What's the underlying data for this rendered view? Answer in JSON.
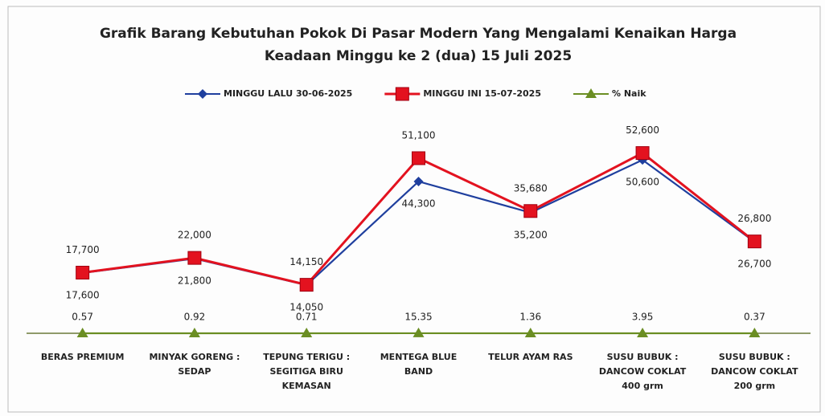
{
  "chart_data": {
    "type": "line",
    "title": "Grafik Barang Kebutuhan Pokok Di Pasar Modern Yang Mengalami Kenaikan Harga",
    "subtitle": "Keadaan Minggu ke  2 (dua) 15 Juli 2025",
    "categories": [
      "BERAS PREMIUM",
      "MINYAK GORENG :\nSEDAP",
      "TEPUNG TERIGU :\nSEGITIGA BIRU\nKEMASAN",
      "MENTEGA BLUE\nBAND",
      "TELUR AYAM RAS",
      "SUSU BUBUK :\nDANCOW COKLAT\n400 grm",
      "SUSU BUBUK :\nDANCOW COKLAT\n200 grm"
    ],
    "ylim": [
      0,
      60000
    ],
    "series": [
      {
        "name": "MINGGU LALU 30-06-2025",
        "color": "#1f3f9e",
        "values": [
          17600,
          21800,
          14050,
          44300,
          35200,
          50600,
          26700
        ],
        "value_labels": [
          "17,600",
          "21,800",
          "14,050",
          "44,300",
          "35,200",
          "50,600",
          "26,700"
        ]
      },
      {
        "name": "MINGGU INI 15-07-2025",
        "color": "#e3121f",
        "values": [
          17700,
          22000,
          14150,
          51100,
          35680,
          52600,
          26800
        ],
        "value_labels": [
          "17,700",
          "22,000",
          "14,150",
          "51,100",
          "35,680",
          "52,600",
          "26,800"
        ]
      },
      {
        "name": "% Naik",
        "color": "#6b8e23",
        "values": [
          0.57,
          0.92,
          0.71,
          15.35,
          1.36,
          3.95,
          0.37
        ]
      }
    ]
  }
}
